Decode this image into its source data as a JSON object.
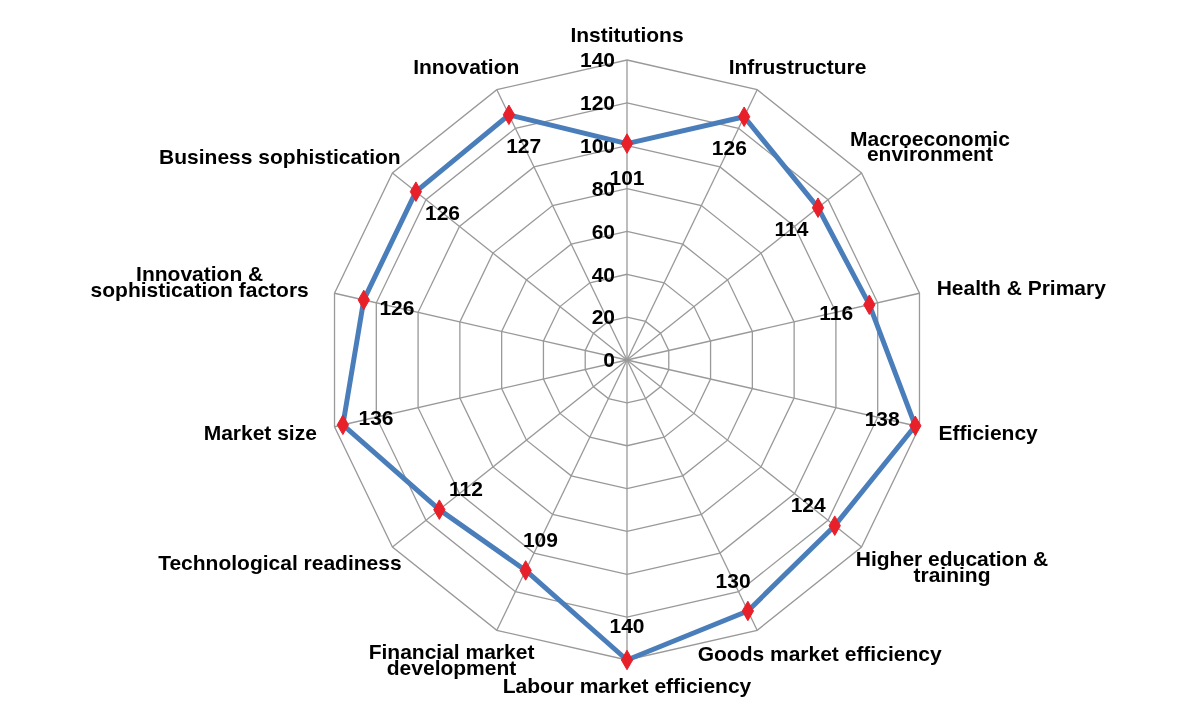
{
  "chart_data": {
    "type": "radar",
    "categories": [
      "Institutions",
      "Infrustructure",
      "Macroeconomic environment",
      "Health & Primary",
      "Efficiency",
      "Higher education & training",
      "Goods market efficiency",
      "Labour market efficiency",
      "Financial market development",
      "Technological readiness",
      "Market size",
      "Innovation & sophistication factors",
      "Business sophistication",
      "Innovation"
    ],
    "series": [
      {
        "color": "#4a7ebb",
        "values": [
          101,
          126,
          114,
          116,
          138,
          124,
          130,
          140,
          109,
          112,
          136,
          126,
          126,
          127
        ]
      }
    ],
    "ylim": [
      0,
      140
    ],
    "yticks": [
      0,
      20,
      40,
      60,
      80,
      100,
      120,
      140
    ],
    "grid": true,
    "marker": "diamond",
    "data_labels": true
  }
}
